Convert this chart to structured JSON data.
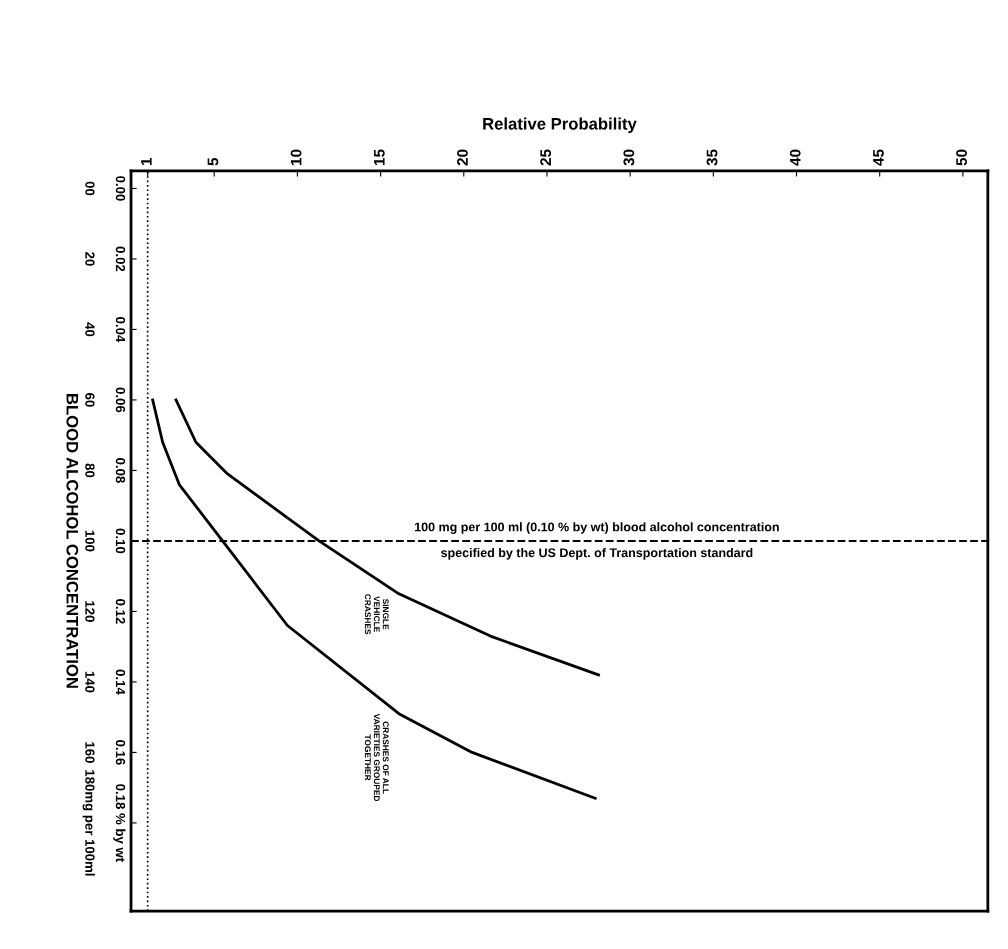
{
  "chart_data": {
    "type": "line",
    "xlabel": "Relative Probability",
    "ylabel": "BLOOD ALCOHOL CONCENTRATION",
    "orientation": "horizontal",
    "xlim": [
      0,
      51.5
    ],
    "xticks": [
      1,
      5,
      10,
      15,
      20,
      25,
      30,
      35,
      40,
      45,
      50
    ],
    "ylim": [
      205,
      -5
    ],
    "yticks": [
      {
        "value": 0,
        "label": "00"
      },
      20,
      40,
      60,
      80,
      100,
      120,
      140,
      160,
      {
        "value": 180,
        "label": "180mg per 100ml"
      }
    ],
    "y2lim": [
      0.205,
      -0.005
    ],
    "y2ticks": [
      {
        "value": 0,
        "label": "0.00"
      },
      0.02,
      0.04,
      0.06,
      0.08,
      {
        "value": 0.1,
        "label": "0.10"
      },
      0.12,
      0.14,
      0.16,
      {
        "value": 0.18,
        "label": "0.18 % by wt"
      }
    ],
    "series": [
      {
        "name": "SINGLE\nVEHICLE\nCRASHES",
        "color": "#000000",
        "x": [
          60,
          72,
          81,
          100,
          115,
          127,
          138
        ],
        "values": [
          2.7,
          3.9,
          5.8,
          11.3,
          16.1,
          21.6,
          28.1
        ]
      },
      {
        "name": "CRASHES OF ALL\nVARIETIES GROUPED\nTOGETHER",
        "color": "#000000",
        "x": [
          60,
          72,
          84,
          100,
          124,
          149,
          160,
          173
        ],
        "values": [
          1.3,
          1.9,
          2.9,
          5.5,
          9.4,
          16.1,
          20.5,
          27.9
        ]
      }
    ],
    "ref_lines": [
      {
        "axis": "y",
        "value": 100,
        "label": "100 mg per 100 ml (0.10 % by wt) blood alcohol concentration",
        "line_style": "dashed",
        "color": "#000000"
      },
      {
        "axis": "x",
        "value": 1,
        "line_style": "dotted",
        "color": "#000000"
      }
    ],
    "annotations": [
      {
        "text": "specified by the US Dept. of Transportation standard",
        "x": 28,
        "y": 100
      }
    ],
    "grid": false,
    "legend": false,
    "marker": "none",
    "line_style": "solid"
  }
}
